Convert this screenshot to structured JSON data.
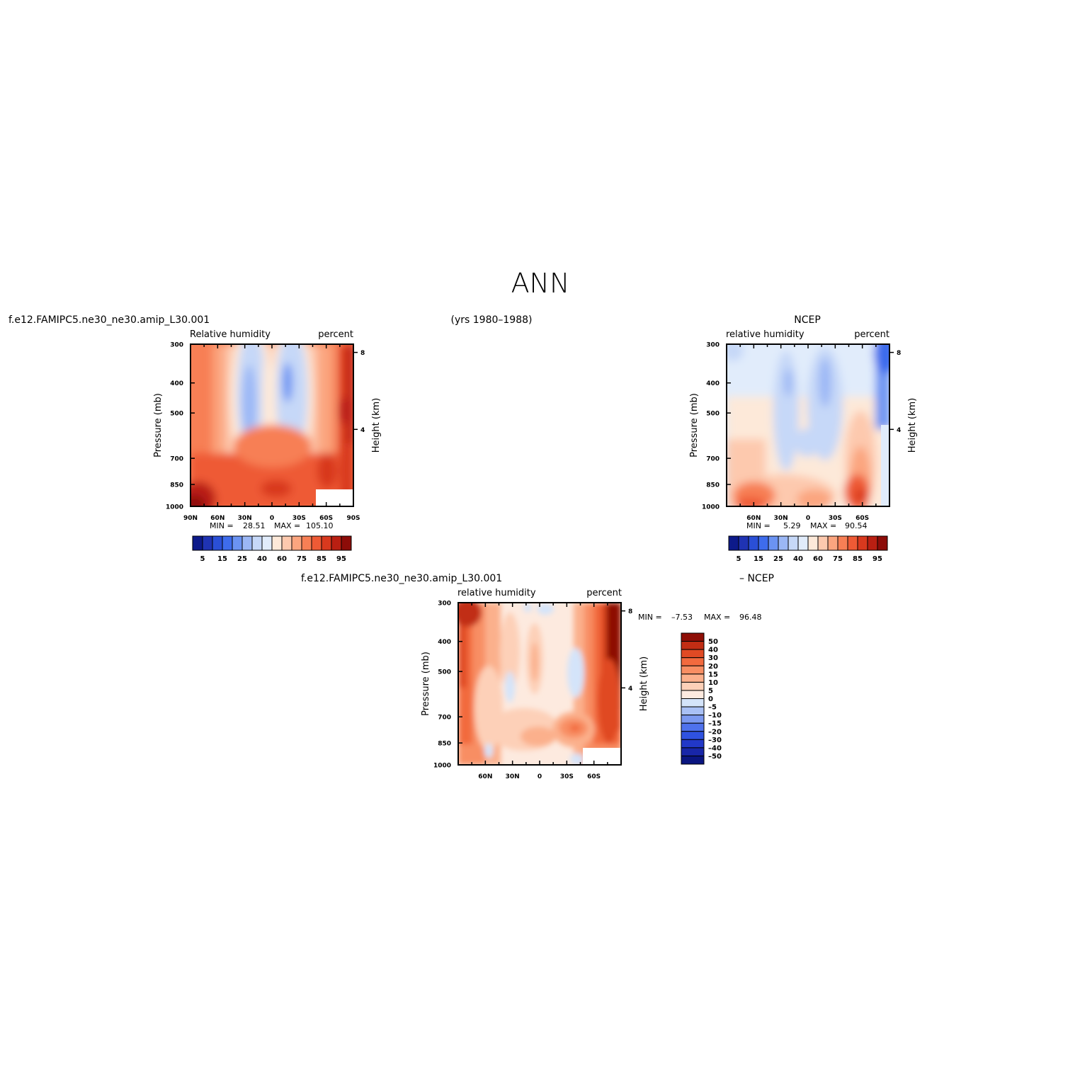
{
  "figure": {
    "season": "ANN",
    "years": "(yrs 1980–1988)"
  },
  "colors": {
    "rh_scale": [
      "#0d1a8a",
      "#1f33b3",
      "#2a4fd6",
      "#3e6cec",
      "#6b93f2",
      "#9bb7f5",
      "#c6d8f8",
      "#e1ecfb",
      "#fde9d9",
      "#fdc9ae",
      "#fba57f",
      "#f77f55",
      "#ee5a35",
      "#d8391e",
      "#b91f12",
      "#8c0c08"
    ],
    "diff_scale": [
      "#0a1580",
      "#1826a8",
      "#2238c8",
      "#2f52e0",
      "#4f72ec",
      "#7c99f0",
      "#a9c0f5",
      "#d4e4fa",
      "#fdeadf",
      "#fdd0b8",
      "#fbb08c",
      "#f88e63",
      "#f26a3e",
      "#e04a24",
      "#c12d14",
      "#8e0e06"
    ]
  },
  "chart_data": [
    {
      "type": "heatmap",
      "title": "f.e12.FAMIPC5.ne30_ne30.amip_L30.001",
      "subtitle_left": "Relative  humidity",
      "subtitle_right": "percent",
      "ylabel": "Pressure  (mb)",
      "ylabel_right": "Height  (km)",
      "x_ticks": [
        "90N",
        "60N",
        "30N",
        "0",
        "30S",
        "60S",
        "90S"
      ],
      "x_tick_values": [
        90,
        60,
        30,
        0,
        -30,
        -60,
        -90
      ],
      "y_ticks": [
        "300",
        "400",
        "500",
        "700",
        "850",
        "1000"
      ],
      "y_tick_values": [
        300,
        400,
        500,
        700,
        850,
        1000
      ],
      "y_right_ticks": [
        "8",
        "4"
      ],
      "xlim": [
        90,
        -90
      ],
      "ylim": [
        1000,
        300
      ],
      "y_scale": "log",
      "min_label": "MIN =",
      "min": "28.51",
      "max_label": "MAX =",
      "max": "105.10",
      "colorbar_labels": [
        "5",
        "15",
        "25",
        "40",
        "60",
        "75",
        "85",
        "95"
      ],
      "colorbar_levels": [
        5,
        10,
        15,
        20,
        25,
        30,
        35,
        40,
        50,
        60,
        70,
        75,
        80,
        85,
        90,
        95
      ]
    },
    {
      "type": "heatmap",
      "title": "NCEP",
      "subtitle_left": "relative  humidity",
      "subtitle_right": "percent",
      "ylabel": "Pressure  (mb)",
      "ylabel_right": "Height  (km)",
      "x_ticks": [
        "60N",
        "30N",
        "0",
        "30S",
        "60S"
      ],
      "x_tick_values": [
        60,
        30,
        0,
        -30,
        -60
      ],
      "y_ticks": [
        "300",
        "400",
        "500",
        "700",
        "850",
        "1000"
      ],
      "y_tick_values": [
        300,
        400,
        500,
        700,
        850,
        1000
      ],
      "y_right_ticks": [
        "8",
        "4"
      ],
      "xlim": [
        90,
        -90
      ],
      "ylim": [
        1000,
        300
      ],
      "y_scale": "log",
      "min_label": "MIN =",
      "min": "5.29",
      "max_label": "MAX =",
      "max": "90.54",
      "colorbar_labels": [
        "5",
        "15",
        "25",
        "40",
        "60",
        "75",
        "85",
        "95"
      ],
      "colorbar_levels": [
        5,
        10,
        15,
        20,
        25,
        30,
        35,
        40,
        50,
        60,
        70,
        75,
        80,
        85,
        90,
        95
      ]
    },
    {
      "type": "heatmap",
      "title": "f.e12.FAMIPC5.ne30_ne30.amip_L30.001",
      "title_right": "–  NCEP",
      "subtitle_left": "relative  humidity",
      "subtitle_right": "percent",
      "ylabel": "Pressure  (mb)",
      "ylabel_right": "Height  (km)",
      "x_ticks": [
        "60N",
        "30N",
        "0",
        "30S",
        "60S"
      ],
      "x_tick_values": [
        60,
        30,
        0,
        -30,
        -60
      ],
      "y_ticks": [
        "300",
        "400",
        "500",
        "700",
        "850",
        "1000"
      ],
      "y_tick_values": [
        300,
        400,
        500,
        700,
        850,
        1000
      ],
      "y_right_ticks": [
        "8",
        "4"
      ],
      "xlim": [
        90,
        -90
      ],
      "ylim": [
        1000,
        300
      ],
      "y_scale": "log",
      "min_label": "MIN =",
      "min": "–7.53",
      "max_label": "MAX =",
      "max": "96.48",
      "colorbar_labels": [
        "50",
        "40",
        "30",
        "20",
        "15",
        "10",
        "5",
        "0",
        "–5",
        "–10",
        "–15",
        "–20",
        "–30",
        "–40",
        "–50"
      ],
      "colorbar_levels": [
        50,
        40,
        30,
        20,
        15,
        10,
        5,
        0,
        -5,
        -10,
        -15,
        -20,
        -30,
        -40,
        -50
      ]
    }
  ]
}
